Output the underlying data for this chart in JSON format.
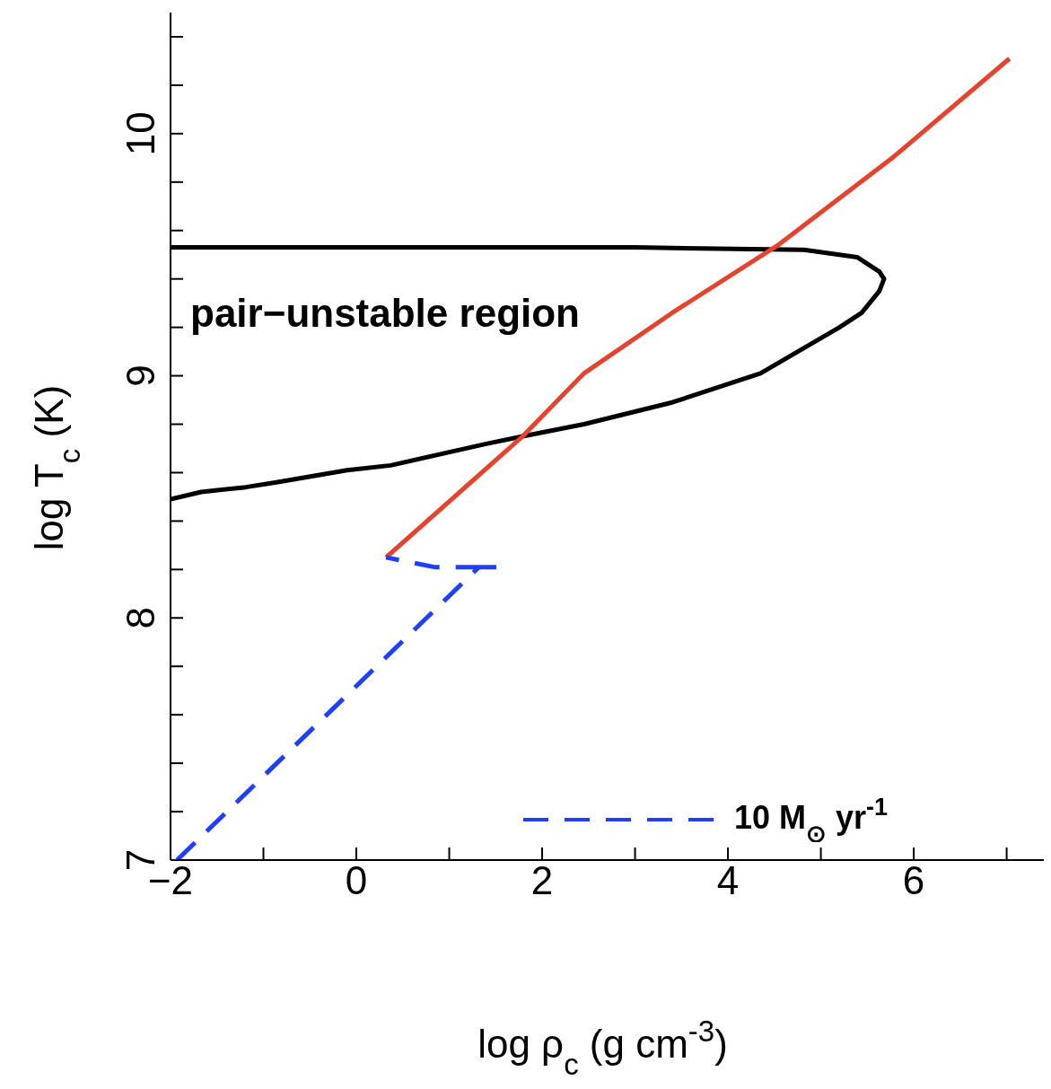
{
  "chart_data": {
    "type": "line",
    "xlabel": "log ρ$_{c}$ (g cm$^{-3}$)",
    "ylabel": "log T$_{c}$ (K)",
    "xlim": [
      -2,
      7.4
    ],
    "ylim": [
      7,
      10.5
    ],
    "xticks": [
      {
        "value": -2,
        "label": "−2"
      },
      {
        "value": -1,
        "label": null
      },
      0,
      {
        "value": 1,
        "label": null
      },
      2,
      {
        "value": 3,
        "label": null
      },
      4,
      {
        "value": 5,
        "label": null
      },
      6,
      {
        "value": 7,
        "label": null
      }
    ],
    "yticks": [
      7,
      {
        "value": 7.2,
        "label": null
      },
      {
        "value": 7.4,
        "label": null
      },
      {
        "value": 7.6,
        "label": null
      },
      {
        "value": 7.8,
        "label": null
      },
      8,
      {
        "value": 8.2,
        "label": null
      },
      {
        "value": 8.4,
        "label": null
      },
      {
        "value": 8.6,
        "label": null
      },
      {
        "value": 8.8,
        "label": null
      },
      9,
      {
        "value": 9.2,
        "label": null
      },
      {
        "value": 9.4,
        "label": null
      },
      {
        "value": 9.6,
        "label": null
      },
      {
        "value": 9.8,
        "label": null
      },
      10,
      {
        "value": 10.2,
        "label": null
      },
      {
        "value": 10.4,
        "label": null
      }
    ],
    "series": [
      {
        "color": "#000000",
        "line_style": "solid",
        "x": [
          -2,
          -1.67,
          -1.19,
          -0.86,
          -0.1,
          0.37,
          1.41,
          1.79,
          2.45,
          3.4,
          4.35,
          5.2,
          5.44,
          5.63,
          5.68,
          5.63,
          5.39,
          4.82,
          3,
          1,
          -2
        ],
        "values": [
          8.49,
          8.52,
          8.54,
          8.56,
          8.61,
          8.63,
          8.72,
          8.75,
          8.8,
          8.89,
          9.01,
          9.2,
          9.26,
          9.35,
          9.4,
          9.43,
          9.49,
          9.52,
          9.53,
          9.53,
          9.53
        ]
      },
      {
        "color": "#e8412c",
        "line_style": "solid",
        "x": [
          0.32,
          1.79,
          2.45,
          3.4,
          4.54,
          5.77,
          7.03
        ],
        "values": [
          8.25,
          8.75,
          9.01,
          9.26,
          9.54,
          9.9,
          10.31
        ]
      },
      {
        "name": "10 M$_{⊙}$ yr$^{-1}$",
        "color": "#1f3fff",
        "line_style": "dashed",
        "x": [
          -1.93,
          1.32,
          1.51,
          0.84,
          0.32
        ],
        "values": [
          7.0,
          8.21,
          8.21,
          8.21,
          8.25
        ]
      }
    ],
    "legend": "bottom right",
    "annotations": [
      "pair−unstable region"
    ]
  }
}
